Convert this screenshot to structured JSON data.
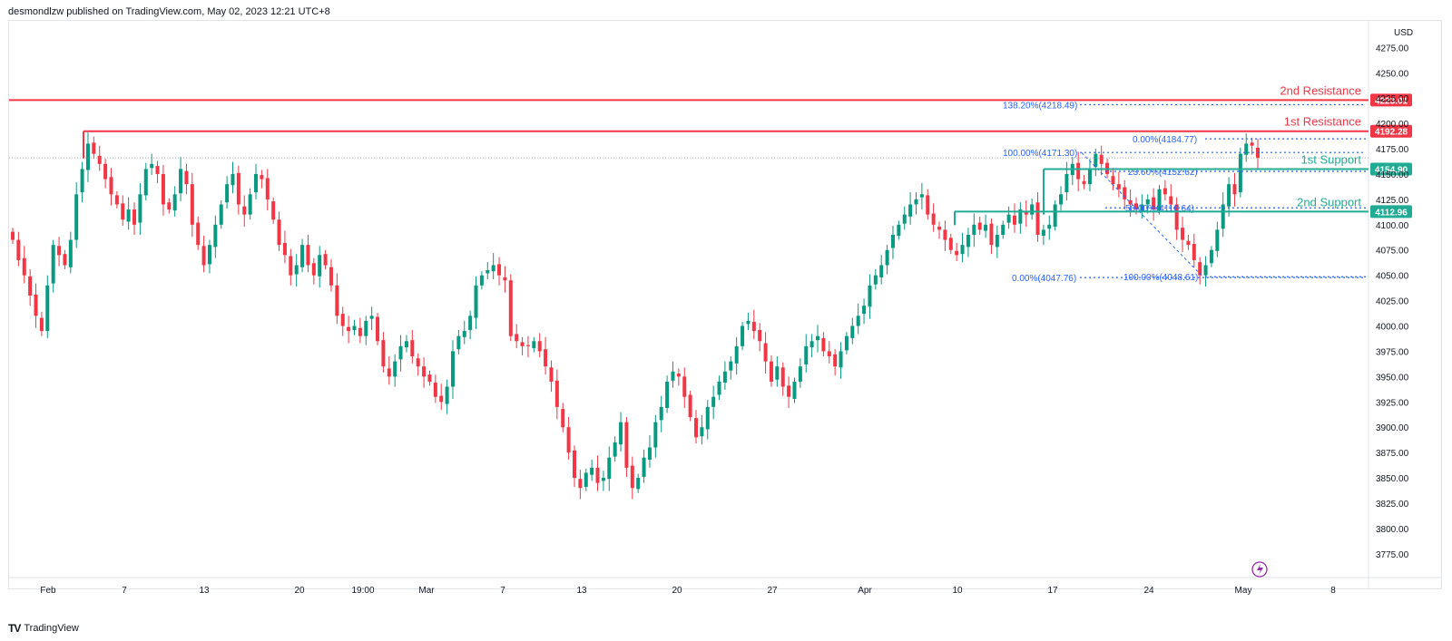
{
  "header": {
    "published": "desmondlzw published on TradingView.com, May 02, 2023 12:21 UTC+8"
  },
  "footer": {
    "brand": "TradingView",
    "logo": "TV"
  },
  "axis": {
    "currency": "USD"
  },
  "chart_data": {
    "type": "candlestick",
    "y_ticks": [
      "4275.00",
      "4250.00",
      "4225.00",
      "4200.00",
      "4175.00",
      "4150.00",
      "4125.00",
      "4100.00",
      "4075.00",
      "4050.00",
      "4025.00",
      "4000.00",
      "3975.00",
      "3950.00",
      "3925.00",
      "3900.00",
      "3875.00",
      "3850.00",
      "3825.00",
      "3800.00",
      "3775.00"
    ],
    "ylim": [
      3765,
      4295
    ],
    "x_ticks": [
      "Feb",
      "7",
      "13",
      "20",
      "19:00",
      "Mar",
      "7",
      "13",
      "20",
      "27",
      "Apr",
      "10",
      "17",
      "24",
      "May",
      "8"
    ],
    "last_price": 4166,
    "levels": [
      {
        "name": "2nd Resistance",
        "value": 4223.01,
        "label": "4223.01",
        "color": "#f23645"
      },
      {
        "name": "1st Resistance",
        "value": 4192.28,
        "label": "4192.28",
        "color": "#f23645"
      },
      {
        "name": "1st Support",
        "value": 4154.9,
        "label": "4154.90",
        "color": "#22ab94"
      },
      {
        "name": "2nd Support",
        "value": 4112.96,
        "label": "4112.96",
        "color": "#22ab94"
      }
    ],
    "fib_labels": [
      {
        "text": "138.20%(4218.49)",
        "value": 4218.49
      },
      {
        "text": "0.00%(4184.77)",
        "value": 4184.77
      },
      {
        "text": "100.00%(4171.30)",
        "value": 4171.3
      },
      {
        "text": "23.60%(4152.62)",
        "value": 4152.62
      },
      {
        "text": "50.00%(4116.64)",
        "value": 4116.64
      },
      {
        "text": "0.00%(4047.76)",
        "value": 4047.76
      },
      {
        "text": "100.00%(4048.61)",
        "value": 4048.61
      }
    ],
    "closes": [
      4085,
      4065,
      4050,
      4030,
      4010,
      3995,
      4040,
      4080,
      4070,
      4060,
      4085,
      4130,
      4155,
      4180,
      4170,
      4160,
      4145,
      4130,
      4120,
      4105,
      4115,
      4100,
      4130,
      4155,
      4160,
      4150,
      4120,
      4115,
      4130,
      4155,
      4140,
      4100,
      4080,
      4060,
      4080,
      4100,
      4120,
      4140,
      4150,
      4120,
      4110,
      4130,
      4150,
      4145,
      4125,
      4105,
      4080,
      4070,
      4050,
      4060,
      4080,
      4060,
      4050,
      4070,
      4060,
      4040,
      4010,
      4000,
      3995,
      4000,
      3990,
      4005,
      4010,
      3985,
      3960,
      3950,
      3965,
      3980,
      3985,
      3970,
      3960,
      3950,
      3945,
      3930,
      3925,
      3940,
      3975,
      3990,
      3995,
      4010,
      4040,
      4050,
      4055,
      4060,
      4050,
      4045,
      3990,
      3985,
      3980,
      3980,
      3985,
      3975,
      3960,
      3945,
      3920,
      3900,
      3875,
      3850,
      3840,
      3855,
      3860,
      3845,
      3850,
      3870,
      3885,
      3905,
      3860,
      3840,
      3850,
      3870,
      3880,
      3905,
      3920,
      3945,
      3955,
      3950,
      3930,
      3910,
      3890,
      3900,
      3920,
      3930,
      3945,
      3955,
      3965,
      3980,
      4000,
      4005,
      3995,
      3985,
      3965,
      3945,
      3960,
      3940,
      3930,
      3945,
      3960,
      3980,
      3985,
      3990,
      3975,
      3970,
      3960,
      3975,
      3990,
      4000,
      4010,
      4020,
      4040,
      4050,
      4060,
      4075,
      4090,
      4100,
      4110,
      4120,
      4125,
      4130,
      4110,
      4100,
      4095,
      4085,
      4075,
      4070,
      4080,
      4090,
      4100,
      4095,
      4100,
      4080,
      4090,
      4100,
      4110,
      4100,
      4115,
      4110,
      4120,
      4090,
      4095,
      4100,
      4120,
      4130,
      4150,
      4160,
      4145,
      4140,
      4155,
      4170,
      4160,
      4150,
      4140,
      4135,
      4125,
      4120,
      4115,
      4120,
      4125,
      4115,
      4135,
      4130,
      4120,
      4095,
      4085,
      4080,
      4065,
      4050,
      4060,
      4075,
      4095,
      4120,
      4140,
      4130,
      4170,
      4180,
      4178,
      4166
    ]
  }
}
